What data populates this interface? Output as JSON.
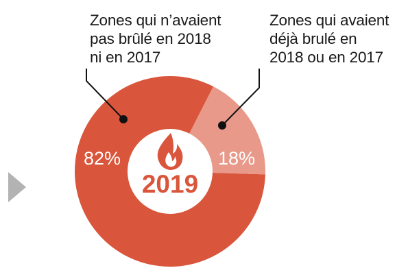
{
  "chart_data": {
    "type": "pie",
    "center_label": "2019",
    "icon": "flame-icon",
    "slices": [
      {
        "label_lines": [
          "Zones qui n’avaient",
          "pas brûlé en 2018",
          "ni en 2017"
        ],
        "value": 82,
        "value_label": "82%",
        "color": "#d9553b"
      },
      {
        "label_lines": [
          "Zones qui avaient",
          "déjà brulé en",
          "2018 ou en 2017"
        ],
        "value": 18,
        "value_label": "18%",
        "color": "#e8998a"
      }
    ],
    "colors": {
      "hole": "#ffffff",
      "leader": "#111111",
      "pointer": "#b3b3b3",
      "value_text": "#ffffff"
    }
  }
}
